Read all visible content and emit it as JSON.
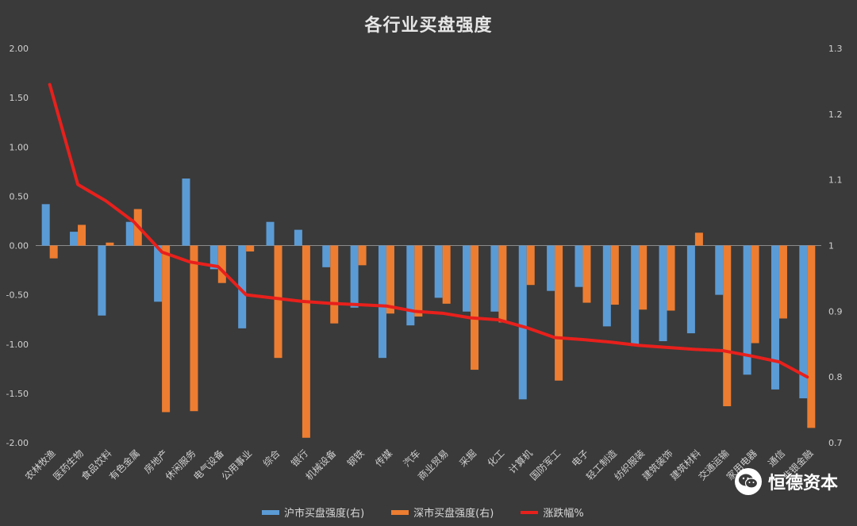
{
  "chart_data": {
    "type": "bar",
    "title": "各行业买盘强度",
    "categories": [
      "农林牧渔",
      "医药生物",
      "食品饮料",
      "有色金属",
      "房地产",
      "休闲服务",
      "电气设备",
      "公用事业",
      "综合",
      "银行",
      "机械设备",
      "钢铁",
      "传媒",
      "汽车",
      "商业贸易",
      "采掘",
      "化工",
      "计算机",
      "国防军工",
      "电子",
      "轻工制造",
      "纺织服装",
      "建筑装饰",
      "建筑材料",
      "交通运输",
      "家用电器",
      "通信",
      "非银金融"
    ],
    "series": [
      {
        "name": "沪市买盘强度(右)",
        "type": "bar",
        "axis": "left",
        "color": "#5b9bd5",
        "values": [
          0.42,
          0.14,
          -0.71,
          0.24,
          -0.57,
          0.68,
          -0.24,
          -0.84,
          0.24,
          0.16,
          -0.22,
          -0.63,
          -1.14,
          -0.81,
          -0.53,
          -0.67,
          -0.67,
          -1.56,
          -0.46,
          -0.42,
          -0.82,
          -1.02,
          -0.97,
          -0.89,
          -0.5,
          -1.31,
          -1.46,
          -1.55
        ]
      },
      {
        "name": "深市买盘强度(右)",
        "type": "bar",
        "axis": "left",
        "color": "#ed7d31",
        "values": [
          -0.13,
          0.21,
          0.03,
          0.37,
          -1.69,
          -1.68,
          -0.38,
          -0.06,
          -1.14,
          -1.95,
          -0.79,
          -0.2,
          -0.69,
          -0.72,
          -0.59,
          -1.26,
          -0.78,
          -0.4,
          -1.37,
          -0.58,
          -0.6,
          -0.65,
          -0.66,
          0.13,
          -1.63,
          -0.99,
          -0.74,
          -1.85
        ]
      },
      {
        "name": "涨跌幅%",
        "type": "line",
        "axis": "right",
        "color": "#e8201c",
        "values": [
          1.245,
          1.093,
          1.068,
          1.036,
          0.99,
          0.975,
          0.968,
          0.925,
          0.92,
          0.915,
          0.912,
          0.91,
          0.908,
          0.9,
          0.897,
          0.89,
          0.887,
          0.875,
          0.86,
          0.857,
          0.853,
          0.848,
          0.845,
          0.842,
          0.84,
          0.832,
          0.823,
          0.8
        ]
      }
    ],
    "y_left": {
      "ylim": [
        -2,
        2
      ],
      "ticks": [
        "-2.00",
        "-1.50",
        "-1.00",
        "-0.50",
        "0.00",
        "0.50",
        "1.00",
        "1.50",
        "2.00"
      ]
    },
    "y_right": {
      "ylim": [
        0.7,
        1.3
      ],
      "ticks": [
        "0.7",
        "0.8",
        "0.9",
        "1",
        "1.1",
        "1.2",
        "1.3"
      ]
    },
    "legend_position": "bottom",
    "grid": false
  },
  "watermark": {
    "text": "恒德资本",
    "icon": "wechat-icon"
  }
}
